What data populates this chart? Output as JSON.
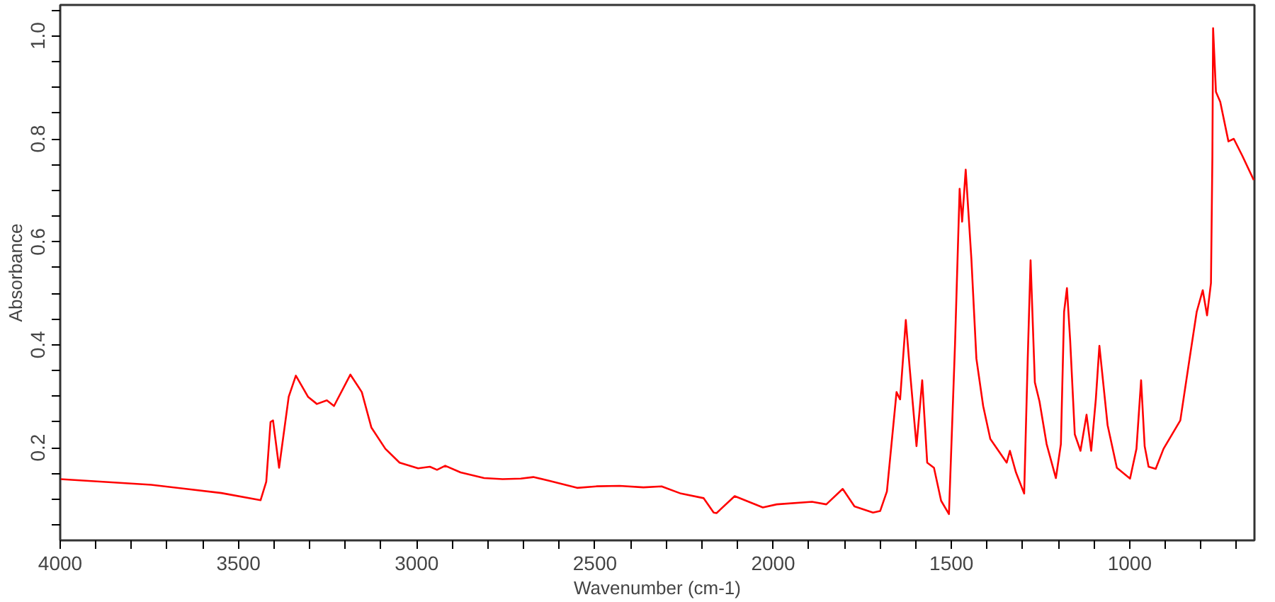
{
  "chart_data": {
    "type": "line",
    "xlabel": "Wavenumber (cm-1)",
    "ylabel": "Absorbance",
    "xlim": [
      4000,
      650
    ],
    "ylim": [
      0.02,
      1.06
    ],
    "xticks": [
      4000,
      {
        "value": 3900,
        "label": null
      },
      {
        "value": 3800,
        "label": null
      },
      {
        "value": 3700,
        "label": null
      },
      {
        "value": 3600,
        "label": null
      },
      3500,
      {
        "value": 3400,
        "label": null
      },
      {
        "value": 3300,
        "label": null
      },
      {
        "value": 3200,
        "label": null
      },
      {
        "value": 3100,
        "label": null
      },
      3000,
      {
        "value": 2900,
        "label": null
      },
      {
        "value": 2800,
        "label": null
      },
      {
        "value": 2700,
        "label": null
      },
      {
        "value": 2600,
        "label": null
      },
      2500,
      {
        "value": 2400,
        "label": null
      },
      {
        "value": 2300,
        "label": null
      },
      {
        "value": 2200,
        "label": null
      },
      {
        "value": 2100,
        "label": null
      },
      2000,
      {
        "value": 1900,
        "label": null
      },
      {
        "value": 1800,
        "label": null
      },
      {
        "value": 1700,
        "label": null
      },
      {
        "value": 1600,
        "label": null
      },
      1500,
      {
        "value": 1400,
        "label": null
      },
      {
        "value": 1300,
        "label": null
      },
      {
        "value": 1200,
        "label": null
      },
      {
        "value": 1100,
        "label": null
      },
      1000,
      {
        "value": 900,
        "label": null
      },
      {
        "value": 800,
        "label": null
      },
      {
        "value": 700,
        "label": null
      }
    ],
    "yticks": [
      {
        "value": 0.05,
        "label": null
      },
      {
        "value": 0.1,
        "label": null
      },
      {
        "value": 0.15,
        "label": null
      },
      {
        "value": 0.2,
        "label": "0.2"
      },
      {
        "value": 0.25,
        "label": null
      },
      {
        "value": 0.3,
        "label": null
      },
      {
        "value": 0.35,
        "label": null
      },
      {
        "value": 0.4,
        "label": "0.4"
      },
      {
        "value": 0.45,
        "label": null
      },
      {
        "value": 0.5,
        "label": null
      },
      {
        "value": 0.55,
        "label": null
      },
      {
        "value": 0.6,
        "label": "0.6"
      },
      {
        "value": 0.65,
        "label": null
      },
      {
        "value": 0.7,
        "label": null
      },
      {
        "value": 0.75,
        "label": null
      },
      {
        "value": 0.8,
        "label": "0.8"
      },
      {
        "value": 0.85,
        "label": null
      },
      {
        "value": 0.9,
        "label": null
      },
      {
        "value": 0.95,
        "label": null
      },
      {
        "value": 1.0,
        "label": "1.0"
      },
      {
        "value": 1.05,
        "label": null
      }
    ],
    "grid": false,
    "marker": "none",
    "line_style": "solid",
    "x": [
      4000,
      3745,
      3548,
      3438,
      3422,
      3410,
      3403,
      3386,
      3359,
      3339,
      3305,
      3280,
      3252,
      3232,
      3186,
      3154,
      3127,
      3088,
      3048,
      2996,
      2963,
      2943,
      2920,
      2877,
      2811,
      2759,
      2708,
      2673,
      2629,
      2550,
      2496,
      2431,
      2364,
      2313,
      2259,
      2195,
      2167,
      2159,
      2108,
      2029,
      1990,
      1891,
      1851,
      1805,
      1772,
      1720,
      1700,
      1681,
      1654,
      1644,
      1628,
      1617,
      1598,
      1582,
      1568,
      1549,
      1529,
      1507,
      1490,
      1477,
      1470,
      1460,
      1444,
      1430,
      1411,
      1391,
      1345,
      1336,
      1319,
      1296,
      1286,
      1278,
      1266,
      1253,
      1233,
      1207,
      1193,
      1184,
      1176,
      1167,
      1154,
      1138,
      1121,
      1108,
      1095,
      1085,
      1062,
      1036,
      999,
      981,
      968,
      958,
      947,
      927,
      905,
      858,
      832,
      812,
      795,
      783,
      772,
      768,
      766,
      758,
      746,
      723,
      708,
      684,
      652
    ],
    "series": [
      {
        "color": "#ff0000",
        "values": [
          0.139,
          0.128,
          0.112,
          0.098,
          0.134,
          0.25,
          0.253,
          0.161,
          0.299,
          0.34,
          0.299,
          0.285,
          0.292,
          0.281,
          0.342,
          0.308,
          0.239,
          0.198,
          0.171,
          0.16,
          0.163,
          0.157,
          0.165,
          0.152,
          0.141,
          0.139,
          0.14,
          0.143,
          0.136,
          0.122,
          0.125,
          0.126,
          0.123,
          0.125,
          0.111,
          0.102,
          0.074,
          0.073,
          0.106,
          0.084,
          0.09,
          0.095,
          0.09,
          0.12,
          0.086,
          0.074,
          0.077,
          0.115,
          0.308,
          0.294,
          0.448,
          0.354,
          0.203,
          0.331,
          0.171,
          0.161,
          0.097,
          0.071,
          0.4,
          0.703,
          0.639,
          0.74,
          0.566,
          0.373,
          0.281,
          0.217,
          0.171,
          0.194,
          0.152,
          0.111,
          0.373,
          0.564,
          0.327,
          0.29,
          0.207,
          0.141,
          0.207,
          0.464,
          0.51,
          0.409,
          0.226,
          0.194,
          0.264,
          0.194,
          0.294,
          0.398,
          0.244,
          0.161,
          0.14,
          0.198,
          0.331,
          0.203,
          0.163,
          0.159,
          0.198,
          0.253,
          0.373,
          0.464,
          0.506,
          0.457,
          0.52,
          0.767,
          1.015,
          0.891,
          0.872,
          0.795,
          0.8,
          0.767,
          0.72
        ]
      }
    ]
  }
}
